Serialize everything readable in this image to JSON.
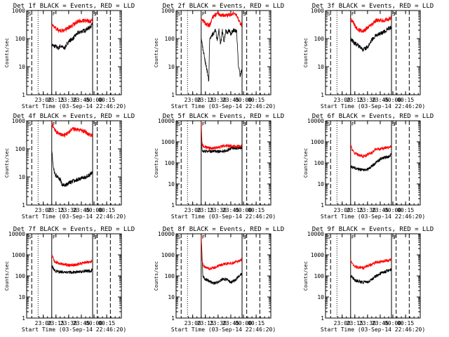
{
  "colors": {
    "events": "#000000",
    "lld": "#ff0000",
    "axes": "#000000",
    "background": "#ffffff"
  },
  "x_ticks": [
    "23:00",
    "23:15",
    "23:30",
    "23:45",
    "00:00",
    "00:15"
  ],
  "chart_data": [
    {
      "type": "line",
      "title": "Det 1f  BLACK = Events, RED = LLD",
      "xlabel": "Start Time (03-Sep-14 22:46:20)",
      "ylabel": "Counts/sec",
      "ylim": [
        1,
        1000
      ],
      "yscale": "log",
      "y_ticks": [
        "1",
        "10",
        "100",
        "1000"
      ],
      "markers": [
        "S",
        "F",
        "S",
        "F"
      ],
      "series": [
        {
          "name": "Events",
          "color": "#000000",
          "t": [
            0,
            2,
            5,
            8,
            10,
            15,
            20,
            25,
            30,
            35,
            40,
            45,
            48
          ],
          "values": [
            60,
            55,
            52,
            45,
            55,
            45,
            80,
            100,
            150,
            180,
            200,
            260,
            320
          ]
        },
        {
          "name": "LLD",
          "color": "#ff0000",
          "t": [
            0,
            2,
            5,
            8,
            10,
            15,
            20,
            25,
            30,
            35,
            40,
            45,
            48
          ],
          "values": [
            300,
            280,
            230,
            200,
            190,
            200,
            250,
            300,
            400,
            450,
            450,
            400,
            500
          ]
        }
      ]
    },
    {
      "type": "line",
      "title": "Det 2f  BLACK = Events, RED = LLD",
      "xlabel": "Start Time (03-Sep-14 22:46:20)",
      "ylabel": "Counts/sec",
      "ylim": [
        1,
        1000
      ],
      "yscale": "log",
      "y_ticks": [
        "1",
        "10",
        "100",
        "1000"
      ],
      "markers": [
        "S",
        "F",
        "S",
        "F"
      ],
      "series": [
        {
          "name": "Events",
          "color": "#000000",
          "t": [
            0,
            3,
            6,
            8,
            9,
            10,
            14,
            17,
            19,
            21,
            23,
            25,
            27,
            29,
            31,
            33,
            35,
            38,
            42,
            44,
            46,
            48
          ],
          "values": [
            100,
            30,
            10,
            5,
            3,
            100,
            150,
            200,
            80,
            200,
            60,
            200,
            70,
            200,
            150,
            210,
            150,
            200,
            180,
            10,
            5,
            7
          ]
        },
        {
          "name": "LLD",
          "color": "#ff0000",
          "t": [
            0,
            3,
            5,
            8,
            10,
            14,
            17,
            20,
            23,
            26,
            30,
            33,
            38,
            42,
            45,
            48
          ],
          "values": [
            500,
            400,
            350,
            300,
            300,
            600,
            700,
            750,
            700,
            700,
            650,
            700,
            800,
            700,
            400,
            300
          ]
        }
      ]
    },
    {
      "type": "line",
      "title": "Det 3f  BLACK = Events, RED = LLD",
      "xlabel": "Start Time (03-Sep-14 22:46:20)",
      "ylabel": "Counts/sec",
      "ylim": [
        1,
        1000
      ],
      "yscale": "log",
      "y_ticks": [
        "1",
        "10",
        "100",
        "1000"
      ],
      "markers": [
        "S",
        "F",
        "S",
        "F"
      ],
      "series": [
        {
          "name": "Events",
          "color": "#000000",
          "t": [
            0,
            3,
            5,
            8,
            10,
            15,
            20,
            25,
            30,
            35,
            40,
            45,
            48
          ],
          "values": [
            100,
            80,
            65,
            60,
            55,
            40,
            50,
            90,
            130,
            150,
            180,
            230,
            250
          ]
        },
        {
          "name": "LLD",
          "color": "#ff0000",
          "t": [
            0,
            3,
            5,
            8,
            10,
            15,
            20,
            25,
            30,
            35,
            40,
            45,
            48
          ],
          "values": [
            500,
            400,
            300,
            220,
            200,
            180,
            250,
            300,
            450,
            450,
            450,
            500,
            550
          ]
        }
      ]
    },
    {
      "type": "line",
      "title": "Det 4f  BLACK = Events, RED = LLD",
      "xlabel": "Start Time (03-Sep-14 22:46:20)",
      "ylabel": "Counts/sec",
      "ylim": [
        1,
        1000
      ],
      "yscale": "log",
      "y_ticks": [
        "1",
        "10",
        "100",
        "1000"
      ],
      "markers": [
        "S",
        "F",
        "S",
        "F"
      ],
      "series": [
        {
          "name": "Events",
          "color": "#000000",
          "t": [
            0,
            2,
            4,
            7,
            10,
            13,
            16,
            20,
            25,
            30,
            35,
            40,
            45,
            48
          ],
          "values": [
            100,
            20,
            12,
            10,
            8,
            5,
            5,
            6,
            7,
            8,
            9,
            10,
            12,
            15
          ]
        },
        {
          "name": "LLD",
          "color": "#ff0000",
          "t": [
            0,
            3,
            6,
            10,
            15,
            20,
            25,
            30,
            35,
            40,
            45,
            48
          ],
          "values": [
            800,
            500,
            400,
            320,
            300,
            400,
            500,
            500,
            450,
            400,
            320,
            300
          ]
        }
      ]
    },
    {
      "type": "line",
      "title": "Det 5f  BLACK = Events, RED = LLD",
      "xlabel": "Start Time (03-Sep-14 22:46:20)",
      "ylabel": "Counts/sec",
      "ylim": [
        1,
        10000
      ],
      "yscale": "log",
      "y_ticks": [
        "1",
        "10",
        "100",
        "1000",
        "10000"
      ],
      "markers": [
        "S",
        "F",
        "S",
        "F"
      ],
      "series": [
        {
          "name": "Events",
          "color": "#000000",
          "t": [
            0,
            1,
            2,
            5,
            10,
            20,
            25,
            30,
            35,
            40,
            45,
            48
          ],
          "values": [
            10000,
            400,
            380,
            360,
            350,
            350,
            360,
            380,
            500,
            500,
            520,
            550
          ]
        },
        {
          "name": "LLD",
          "color": "#ff0000",
          "t": [
            0,
            1,
            3,
            6,
            10,
            15,
            20,
            25,
            30,
            35,
            40,
            45,
            48
          ],
          "values": [
            10000,
            800,
            600,
            550,
            500,
            500,
            550,
            600,
            650,
            650,
            600,
            600,
            650
          ]
        }
      ]
    },
    {
      "type": "line",
      "title": "Det 6f  BLACK = Events, RED = LLD",
      "xlabel": "Start Time (03-Sep-14 22:46:20)",
      "ylabel": "Counts/sec",
      "ylim": [
        1,
        10000
      ],
      "yscale": "log",
      "y_ticks": [
        "1",
        "10",
        "100",
        "1000",
        "10000"
      ],
      "markers": [
        "S",
        "F",
        "S",
        "F"
      ],
      "series": [
        {
          "name": "Events",
          "color": "#000000",
          "t": [
            0,
            3,
            6,
            10,
            15,
            20,
            25,
            30,
            35,
            40,
            45,
            48
          ],
          "values": [
            70,
            60,
            55,
            50,
            45,
            50,
            70,
            100,
            150,
            180,
            200,
            250
          ]
        },
        {
          "name": "LLD",
          "color": "#ff0000",
          "t": [
            0,
            2,
            4,
            8,
            12,
            15,
            20,
            25,
            30,
            35,
            40,
            45,
            48
          ],
          "values": [
            800,
            400,
            300,
            250,
            220,
            200,
            250,
            300,
            450,
            450,
            500,
            550,
            600
          ]
        }
      ]
    },
    {
      "type": "line",
      "title": "Det 7f  BLACK = Events, RED = LLD",
      "xlabel": "Start Time (03-Sep-14 22:46:20)",
      "ylabel": "Counts/sec",
      "ylim": [
        1,
        10000
      ],
      "yscale": "log",
      "y_ticks": [
        "1",
        "10",
        "100",
        "1000",
        "10000"
      ],
      "markers": [
        "S",
        "F",
        "S",
        "F"
      ],
      "series": [
        {
          "name": "Events",
          "color": "#000000",
          "t": [
            0,
            3,
            8,
            15,
            20,
            25,
            30,
            35,
            40,
            45,
            48
          ],
          "values": [
            300,
            180,
            160,
            150,
            150,
            150,
            160,
            160,
            170,
            170,
            180
          ]
        },
        {
          "name": "LLD",
          "color": "#ff0000",
          "t": [
            0,
            3,
            8,
            15,
            20,
            25,
            30,
            35,
            40,
            45,
            48
          ],
          "values": [
            1000,
            500,
            400,
            350,
            330,
            330,
            350,
            400,
            450,
            450,
            500
          ]
        }
      ]
    },
    {
      "type": "line",
      "title": "Det 8f  BLACK = Events, RED = LLD",
      "xlabel": "Start Time (03-Sep-14 22:46:20)",
      "ylabel": "Counts/sec",
      "ylim": [
        1,
        10000
      ],
      "yscale": "log",
      "y_ticks": [
        "1",
        "10",
        "100",
        "1000",
        "10000"
      ],
      "markers": [
        "S",
        "F",
        "S",
        "F"
      ],
      "series": [
        {
          "name": "Events",
          "color": "#000000",
          "t": [
            0,
            2,
            5,
            8,
            10,
            15,
            20,
            25,
            30,
            35,
            40,
            45,
            48
          ],
          "values": [
            10000,
            100,
            70,
            60,
            55,
            45,
            50,
            70,
            70,
            50,
            60,
            100,
            120
          ]
        },
        {
          "name": "LLD",
          "color": "#ff0000",
          "t": [
            0,
            1,
            3,
            6,
            10,
            15,
            20,
            25,
            30,
            35,
            40,
            45,
            48
          ],
          "values": [
            10000,
            500,
            300,
            250,
            220,
            250,
            300,
            350,
            400,
            400,
            450,
            500,
            600
          ]
        }
      ]
    },
    {
      "type": "line",
      "title": "Det 9f  BLACK = Events, RED = LLD",
      "xlabel": "Start Time (03-Sep-14 22:46:20)",
      "ylabel": "Counts/sec",
      "ylim": [
        1,
        10000
      ],
      "yscale": "log",
      "y_ticks": [
        "1",
        "10",
        "100",
        "1000",
        "10000"
      ],
      "markers": [
        "S",
        "F",
        "S",
        "F"
      ],
      "series": [
        {
          "name": "Events",
          "color": "#000000",
          "t": [
            0,
            3,
            6,
            10,
            15,
            20,
            25,
            30,
            35,
            40,
            45,
            48
          ],
          "values": [
            100,
            80,
            60,
            55,
            50,
            50,
            70,
            100,
            130,
            150,
            180,
            200
          ]
        },
        {
          "name": "LLD",
          "color": "#ff0000",
          "t": [
            0,
            2,
            4,
            8,
            12,
            15,
            20,
            25,
            30,
            35,
            40,
            45,
            48
          ],
          "values": [
            600,
            400,
            300,
            250,
            250,
            250,
            300,
            350,
            450,
            450,
            500,
            550,
            600
          ]
        }
      ]
    }
  ]
}
